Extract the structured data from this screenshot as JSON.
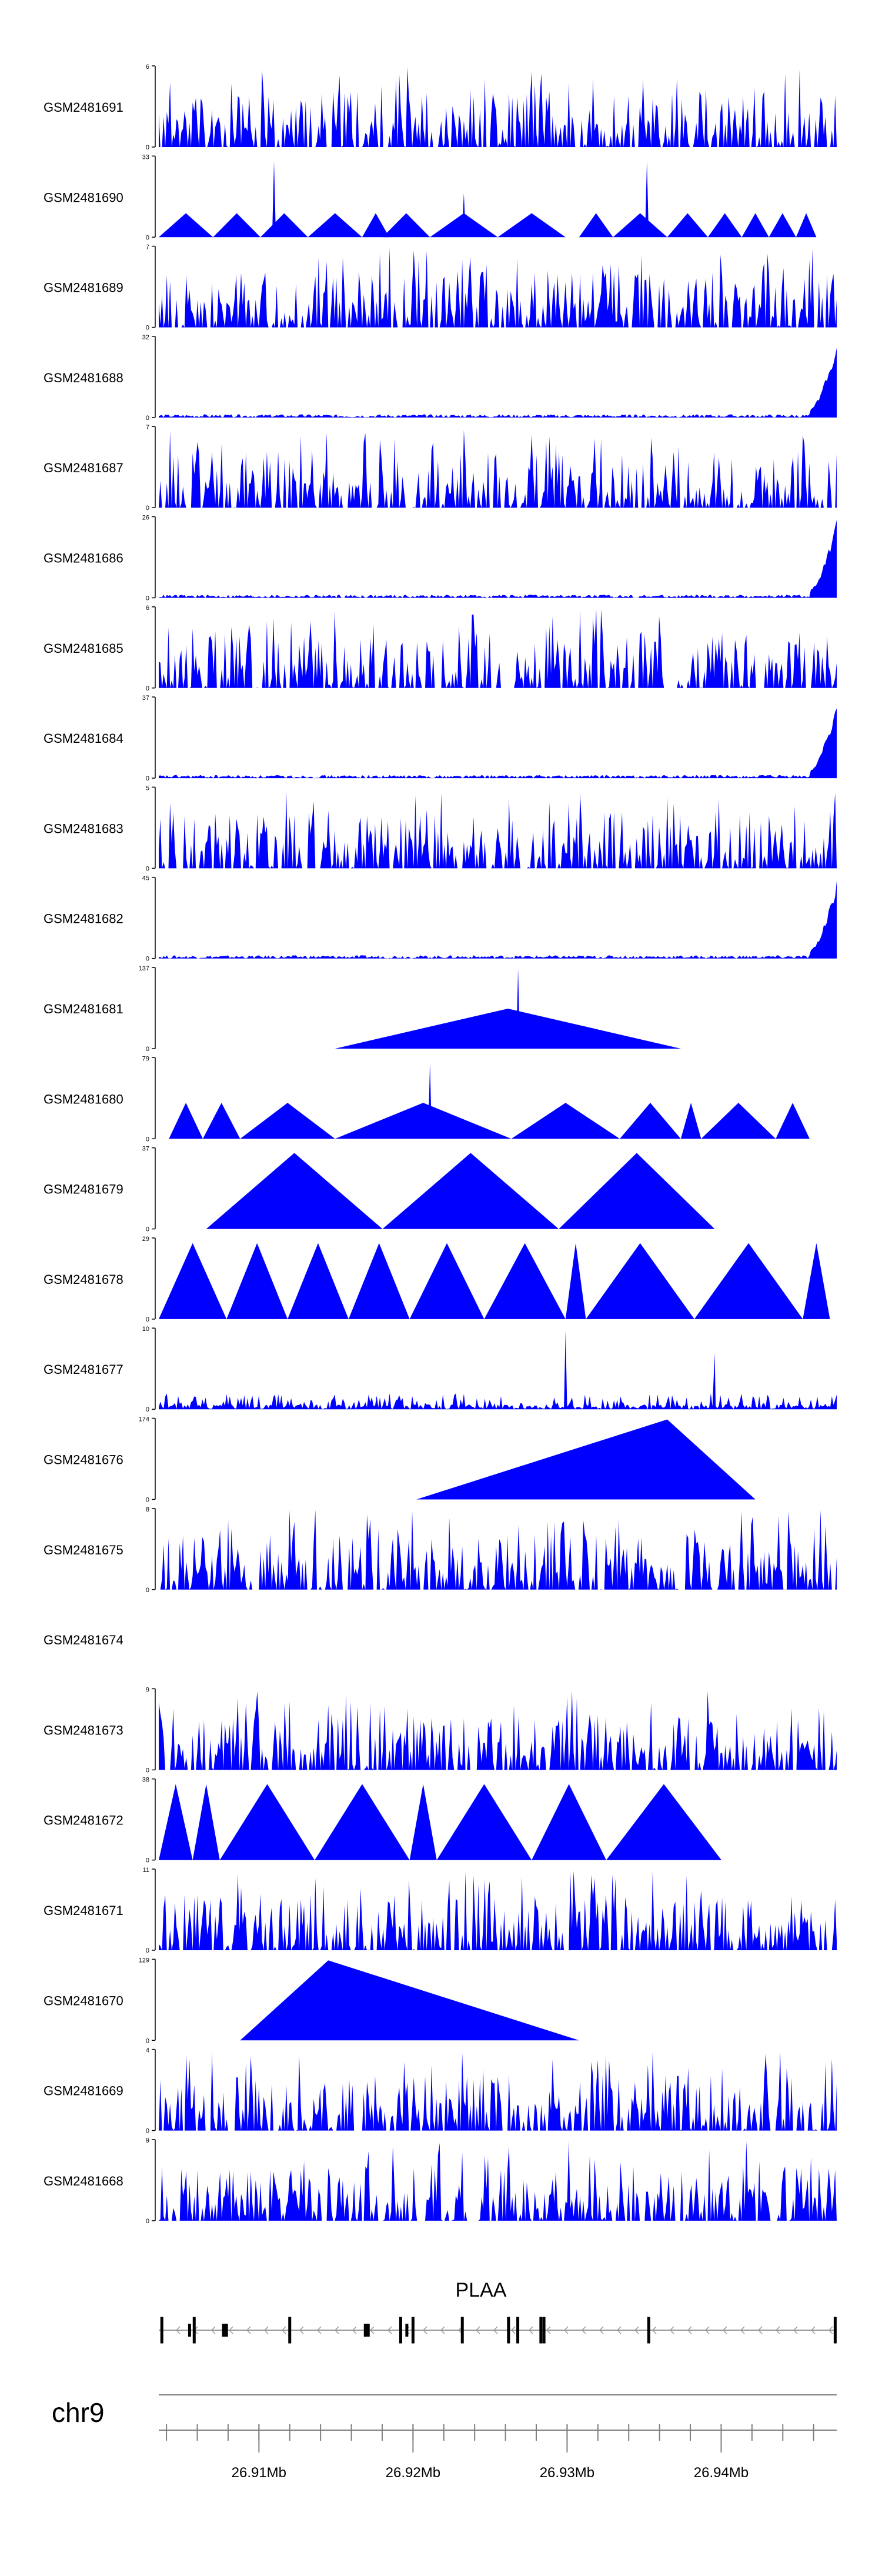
{
  "colors": {
    "fill": "#0000ff",
    "axis": "#000000",
    "gene": "#000000",
    "intron_arrow": "#999999",
    "ruler": "#7f7f7f",
    "background": "#ffffff"
  },
  "chart_data": {
    "type": "area",
    "title": "",
    "chromosome": "chr9",
    "gene": {
      "name": "PLAA",
      "strand": "-",
      "start_mb": 26.9035,
      "end_mb": 26.9475,
      "exons_mb": [
        26.9037,
        26.9055,
        26.9058,
        26.9078,
        26.912,
        26.917,
        26.9192,
        26.9196,
        26.92,
        26.9232,
        26.9262,
        26.9268,
        26.9283,
        26.9285,
        26.9353,
        26.9474
      ]
    },
    "xaxis": {
      "range_mb": [
        26.9035,
        26.9475
      ],
      "major_ticks_mb": [
        26.91,
        26.92,
        26.93,
        26.94
      ],
      "tick_labels": [
        "26.91Mb",
        "26.92Mb",
        "26.93Mb",
        "26.94Mb"
      ],
      "minor_ticks_mb": [
        26.904,
        26.906,
        26.908,
        26.91,
        26.912,
        26.914,
        26.916,
        26.918,
        26.92,
        26.922,
        26.924,
        26.926,
        26.928,
        26.93,
        26.932,
        26.934,
        26.936,
        26.938,
        26.94,
        26.942,
        26.944,
        26.946
      ]
    },
    "tracks": [
      {
        "name": "GSM2481691",
        "ymax": "6",
        "ymax_value": 6,
        "pattern": "spiky",
        "seed": 11
      },
      {
        "name": "GSM2481690",
        "ymax": "33",
        "ymax_value": 33,
        "pattern": "triangles",
        "seed": 12,
        "segments": [
          [
            0.0,
            0.08,
            0.3
          ],
          [
            0.08,
            0.15,
            0.3
          ],
          [
            0.15,
            0.22,
            0.3
          ],
          [
            0.22,
            0.3,
            0.3
          ],
          [
            0.3,
            0.34,
            0.3
          ],
          [
            0.33,
            0.4,
            0.3
          ],
          [
            0.4,
            0.5,
            0.3
          ],
          [
            0.5,
            0.6,
            0.3
          ],
          [
            0.62,
            0.67,
            0.3
          ],
          [
            0.67,
            0.75,
            0.3
          ],
          [
            0.75,
            0.81,
            0.3
          ],
          [
            0.81,
            0.86,
            0.3
          ],
          [
            0.86,
            0.9,
            0.3
          ],
          [
            0.9,
            0.94,
            0.3
          ],
          [
            0.94,
            0.97,
            0.3
          ]
        ],
        "spikes": [
          [
            0.17,
            0.95
          ],
          [
            0.72,
            0.95
          ],
          [
            0.45,
            0.55
          ]
        ]
      },
      {
        "name": "GSM2481689",
        "ymax": "7",
        "ymax_value": 7,
        "pattern": "spiky",
        "seed": 13
      },
      {
        "name": "GSM2481688",
        "ymax": "32",
        "ymax_value": 32,
        "pattern": "noise_rise",
        "seed": 14
      },
      {
        "name": "GSM2481687",
        "ymax": "7",
        "ymax_value": 7,
        "pattern": "spiky",
        "seed": 15
      },
      {
        "name": "GSM2481686",
        "ymax": "26",
        "ymax_value": 26,
        "pattern": "noise_rise",
        "seed": 16
      },
      {
        "name": "GSM2481685",
        "ymax": "6",
        "ymax_value": 6,
        "pattern": "spiky",
        "seed": 17
      },
      {
        "name": "GSM2481684",
        "ymax": "37",
        "ymax_value": 37,
        "pattern": "noise_rise",
        "seed": 18
      },
      {
        "name": "GSM2481683",
        "ymax": "5",
        "ymax_value": 5,
        "pattern": "spiky",
        "seed": 19
      },
      {
        "name": "GSM2481682",
        "ymax": "45",
        "ymax_value": 45,
        "pattern": "noise_rise",
        "seed": 20
      },
      {
        "name": "GSM2481681",
        "ymax": "137",
        "ymax_value": 137,
        "pattern": "triangles",
        "seed": 21,
        "segments": [
          [
            0.26,
            0.77,
            0.5
          ]
        ],
        "spikes": [
          [
            0.53,
            1.0
          ]
        ]
      },
      {
        "name": "GSM2481680",
        "ymax": "79",
        "ymax_value": 79,
        "pattern": "triangles",
        "seed": 22,
        "segments": [
          [
            0.015,
            0.065,
            0.45
          ],
          [
            0.065,
            0.12,
            0.45
          ],
          [
            0.12,
            0.26,
            0.45
          ],
          [
            0.26,
            0.52,
            0.45
          ],
          [
            0.52,
            0.68,
            0.45
          ],
          [
            0.68,
            0.77,
            0.45
          ],
          [
            0.77,
            0.8,
            0.45
          ],
          [
            0.8,
            0.91,
            0.45
          ],
          [
            0.91,
            0.96,
            0.45
          ]
        ],
        "spikes": [
          [
            0.4,
            0.95
          ]
        ]
      },
      {
        "name": "GSM2481679",
        "ymax": "37",
        "ymax_value": 37,
        "pattern": "triangles",
        "seed": 23,
        "segments": [
          [
            0.07,
            0.33,
            0.95
          ],
          [
            0.33,
            0.59,
            0.95
          ],
          [
            0.59,
            0.82,
            0.95
          ]
        ]
      },
      {
        "name": "GSM2481678",
        "ymax": "29",
        "ymax_value": 29,
        "pattern": "triangles",
        "seed": 24,
        "segments": [
          [
            0.0,
            0.1,
            0.95
          ],
          [
            0.1,
            0.19,
            0.95
          ],
          [
            0.19,
            0.28,
            0.95
          ],
          [
            0.28,
            0.37,
            0.95
          ],
          [
            0.37,
            0.48,
            0.95
          ],
          [
            0.48,
            0.6,
            0.95
          ],
          [
            0.6,
            0.63,
            0.95
          ],
          [
            0.63,
            0.79,
            0.95
          ],
          [
            0.79,
            0.95,
            0.95
          ],
          [
            0.95,
            0.99,
            0.95
          ]
        ]
      },
      {
        "name": "GSM2481677",
        "ymax": "10",
        "ymax_value": 10,
        "pattern": "low_spiky",
        "seed": 25,
        "spikes": [
          [
            0.6,
            0.98
          ],
          [
            0.82,
            0.7
          ]
        ]
      },
      {
        "name": "GSM2481676",
        "ymax": "174",
        "ymax_value": 174,
        "pattern": "triangles",
        "seed": 26,
        "segments": [
          [
            0.38,
            0.88,
            1.0
          ]
        ],
        "peak_pos": [
          0.75
        ]
      },
      {
        "name": "GSM2481675",
        "ymax": "8",
        "ymax_value": 8,
        "pattern": "spiky",
        "seed": 27
      },
      {
        "name": "GSM2481674",
        "ymax": "",
        "ymax_value": 0,
        "pattern": "empty",
        "seed": 28
      },
      {
        "name": "GSM2481673",
        "ymax": "9",
        "ymax_value": 9,
        "pattern": "spiky",
        "seed": 29
      },
      {
        "name": "GSM2481672",
        "ymax": "38",
        "ymax_value": 38,
        "pattern": "triangles",
        "seed": 30,
        "segments": [
          [
            0.0,
            0.05,
            0.95
          ],
          [
            0.05,
            0.09,
            0.95
          ],
          [
            0.09,
            0.23,
            0.95
          ],
          [
            0.23,
            0.37,
            0.95
          ],
          [
            0.37,
            0.41,
            0.95
          ],
          [
            0.41,
            0.55,
            0.95
          ],
          [
            0.55,
            0.66,
            0.95
          ],
          [
            0.66,
            0.83,
            0.95
          ]
        ]
      },
      {
        "name": "GSM2481671",
        "ymax": "11",
        "ymax_value": 11,
        "pattern": "spiky",
        "seed": 31
      },
      {
        "name": "GSM2481670",
        "ymax": "129",
        "ymax_value": 129,
        "pattern": "triangles",
        "seed": 32,
        "segments": [
          [
            0.12,
            0.62,
            1.0
          ]
        ],
        "peak_pos": [
          0.25
        ]
      },
      {
        "name": "GSM2481669",
        "ymax": "4",
        "ymax_value": 4,
        "pattern": "spiky",
        "seed": 33
      },
      {
        "name": "GSM2481668",
        "ymax": "9",
        "ymax_value": 9,
        "pattern": "spiky",
        "seed": 34
      }
    ]
  }
}
